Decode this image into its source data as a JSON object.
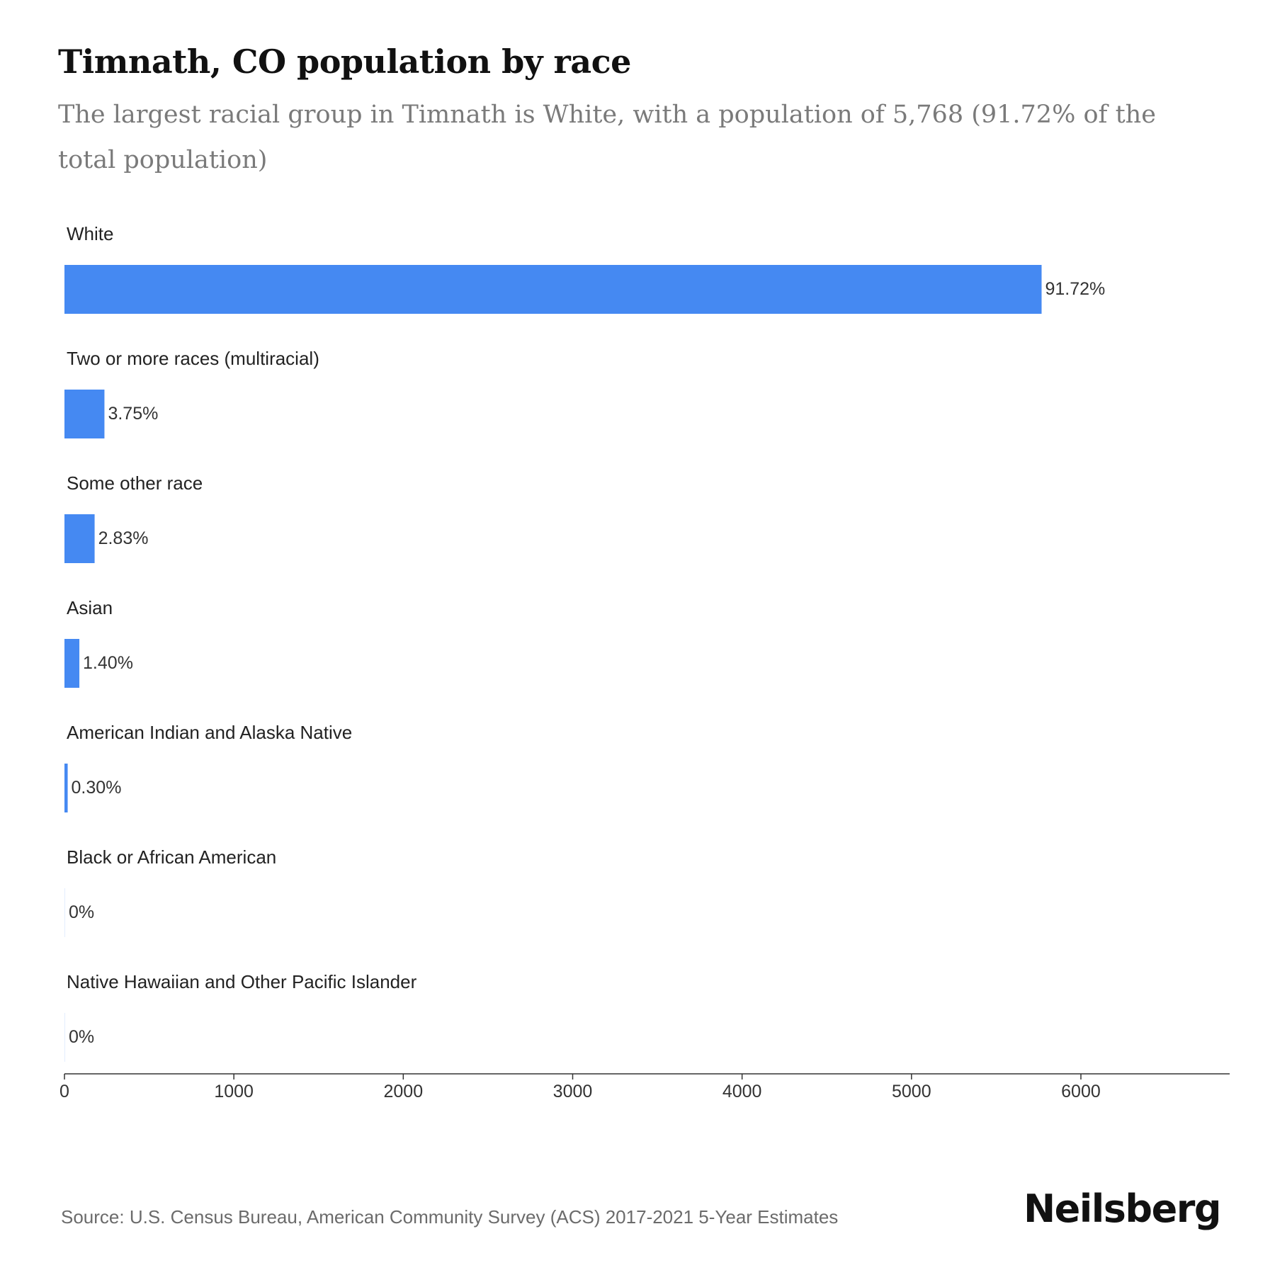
{
  "title": "Timnath, CO population by race",
  "subtitle": "The largest racial group in Timnath is White, with a population of 5,768 (91.72% of the total population)",
  "source": "Source: U.S. Census Bureau, American Community Survey (ACS) 2017-2021 5-Year Estimates",
  "brand": "Neilsberg",
  "colors": {
    "bar": "#4589f2",
    "text": "#222222",
    "axis": "#333333"
  },
  "chart_data": {
    "type": "bar",
    "orientation": "horizontal",
    "categories": [
      "White",
      "Two or more races (multiracial)",
      "Some other race",
      "Asian",
      "American Indian and Alaska Native",
      "Black or African American",
      "Native Hawaiian and Other Pacific Islander"
    ],
    "values": [
      5768,
      236,
      178,
      88,
      19,
      0,
      0
    ],
    "labels": [
      "91.72%",
      "3.75%",
      "2.83%",
      "1.40%",
      "0.30%",
      "0%",
      "0%"
    ],
    "xticks": [
      0,
      1000,
      2000,
      3000,
      4000,
      5000,
      6000
    ],
    "xlim": [
      0,
      6920
    ],
    "grid": false,
    "legend": "none"
  }
}
